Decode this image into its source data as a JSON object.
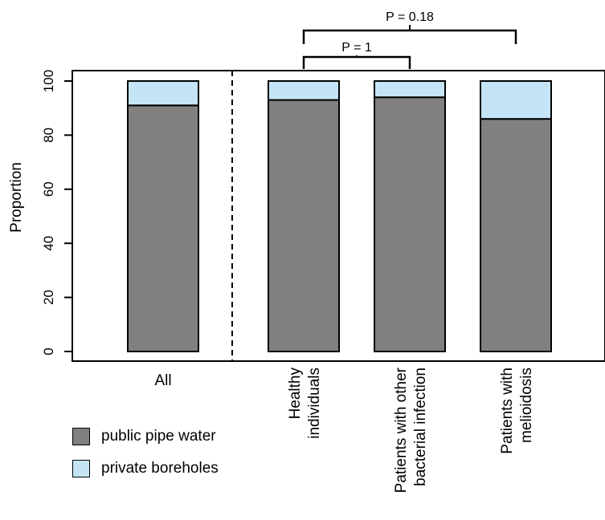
{
  "chart_data": {
    "type": "bar",
    "stacked": true,
    "categories": [
      "All",
      "Healthy individuals",
      "Patients with other bacterial infection",
      "Patients with melioidosis"
    ],
    "category_lines": [
      [
        "All"
      ],
      [
        "Healthy",
        "individuals"
      ],
      [
        "Patients with other",
        "bacterial infection"
      ],
      [
        "Patients with",
        "melioidosis"
      ]
    ],
    "series": [
      {
        "name": "public pipe water",
        "color": "#808080",
        "values": [
          91,
          93,
          94,
          86
        ]
      },
      {
        "name": "private boreholes",
        "color": "#c5e5f7",
        "values": [
          9,
          7,
          6,
          14
        ]
      }
    ],
    "ylabel": "Proportion",
    "ylim": [
      0,
      100
    ],
    "yticks": [
      "0",
      "20",
      "40",
      "60",
      "80",
      "100"
    ],
    "separator": "dashed vertical line between All and the group bars",
    "annotations": [
      {
        "label": "P = 1",
        "from": "Healthy individuals",
        "to": "Patients with other bacterial infection"
      },
      {
        "label": "P = 0.18",
        "from": "Healthy individuals",
        "to": "Patients with melioidosis"
      }
    ],
    "grid": false,
    "legend": "bottom-left"
  }
}
